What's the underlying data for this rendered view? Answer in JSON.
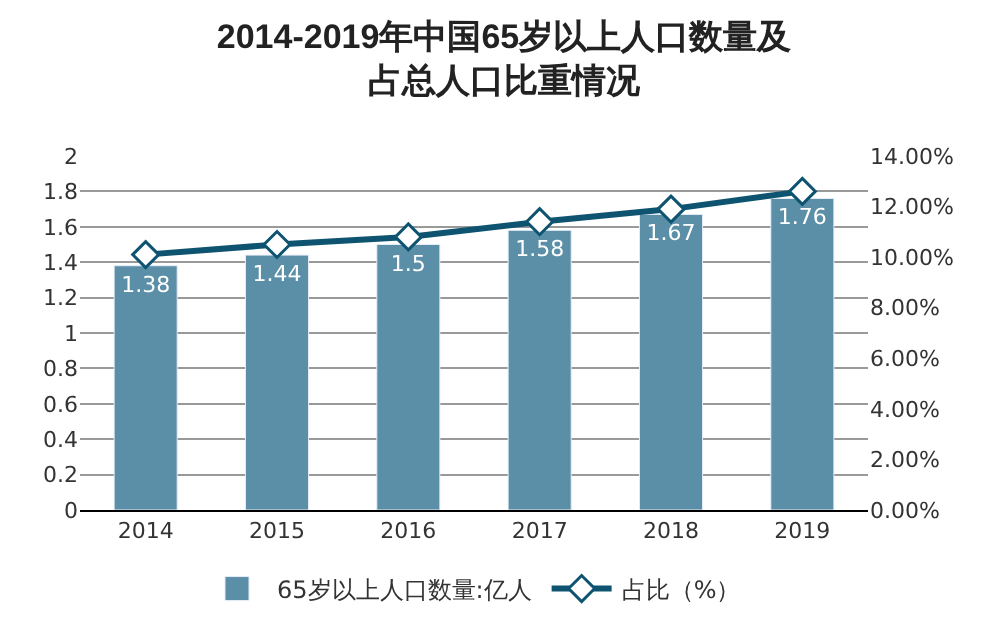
{
  "chart_data": {
    "type": "bar",
    "title": "2014-2019年中国65岁以上人口数量及占总人口比重情况",
    "categories": [
      "2014",
      "2015",
      "2016",
      "2017",
      "2018",
      "2019"
    ],
    "series": [
      {
        "name": "65岁以上人口数量:亿人",
        "color": "#5b8fa8",
        "values": [
          1.38,
          1.44,
          1.5,
          1.58,
          1.67,
          1.76
        ],
        "value_labels": [
          "1.38",
          "1.44",
          "1.5",
          "1.58",
          "1.67",
          "1.76"
        ]
      },
      {
        "name": "占比（%）",
        "type": "line",
        "axis": "y2",
        "color": "#0e5470",
        "marker": "diamond",
        "values": [
          10.1,
          10.5,
          10.8,
          11.4,
          11.9,
          12.6
        ]
      }
    ],
    "ylim": [
      0,
      2
    ],
    "yticks": [
      0,
      0.2,
      0.4,
      0.6,
      0.8,
      1,
      1.2,
      1.4,
      1.6,
      1.8,
      2
    ],
    "y2lim": [
      0,
      14
    ],
    "y2ticks": [
      {
        "value": 0,
        "label": "0.00%"
      },
      {
        "value": 2,
        "label": "2.00%"
      },
      {
        "value": 4,
        "label": "4.00%"
      },
      {
        "value": 6,
        "label": "6.00%"
      },
      {
        "value": 8,
        "label": "8.00%"
      },
      {
        "value": 10,
        "label": "10.00%"
      },
      {
        "value": 12,
        "label": "12.00%"
      },
      {
        "value": 14,
        "label": "14.00%"
      }
    ],
    "grid": "y",
    "legend": "bottom"
  }
}
